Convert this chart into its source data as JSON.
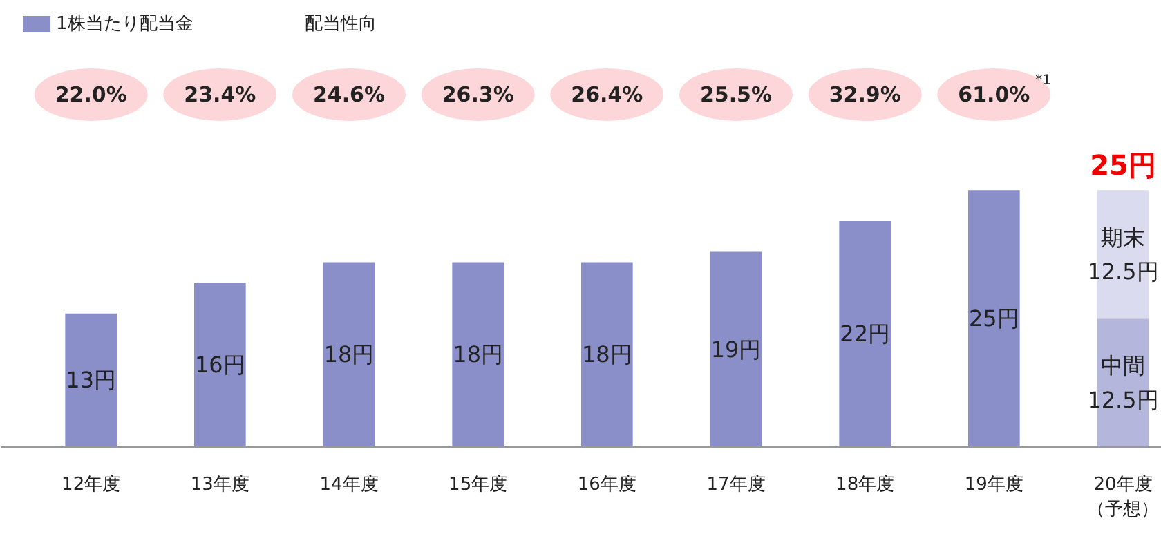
{
  "chart_data": {
    "type": "bar",
    "stacked": true,
    "legend": "top left",
    "categories": [
      "12年度",
      "13年度",
      "14年度",
      "15年度",
      "16年度",
      "17年度",
      "18年度",
      "19年度",
      "20年度（予想）"
    ],
    "series": [
      {
        "name": "1株当たり配当金",
        "color": "#8a8fc9",
        "colors": [
          "#8a8fc9",
          "#8a8fc9",
          "#8a8fc9",
          "#8a8fc9",
          "#8a8fc9",
          "#8a8fc9",
          "#8a8fc9",
          "#8a8fc9",
          "#b4b6dc"
        ],
        "values": [
          13,
          16,
          18,
          18,
          18,
          19,
          22,
          25,
          12.5
        ],
        "value_labels": [
          "13円",
          "16円",
          "18円",
          "18円",
          "18円",
          "19円",
          "22円",
          "25円",
          "中間\n12.5円"
        ]
      },
      {
        "color": "#dadbee",
        "values": [
          null,
          null,
          null,
          null,
          null,
          null,
          null,
          null,
          12.5
        ],
        "value_labels": [
          null,
          null,
          null,
          null,
          null,
          null,
          null,
          null,
          "期末\n12.5円"
        ]
      }
    ],
    "totals": [
      null,
      null,
      null,
      null,
      null,
      null,
      null,
      null,
      "25円"
    ],
    "annotations": [
      "配当性向",
      "22.0%",
      "23.4%",
      "24.6%",
      "26.3%",
      "26.4%",
      "25.5%",
      "32.9%",
      "61.0%$^{*1}$"
    ]
  }
}
